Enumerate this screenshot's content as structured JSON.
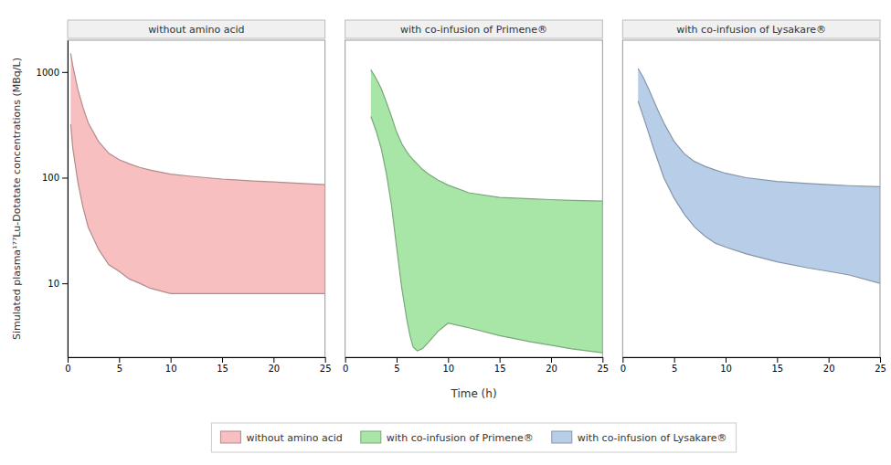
{
  "chart_data": [
    {
      "type": "area",
      "title": "without amino acid",
      "ylabel": "Simulated plasma¹⁷⁷Lu-Dotatate concentrations (MBq/L)",
      "x": [
        0.3,
        0.5,
        1.0,
        1.5,
        2.0,
        3.0,
        4.0,
        5.0,
        6.0,
        7.0,
        8.0,
        10.0,
        12.0,
        15.0,
        18.0,
        20.0,
        22.0,
        25.0
      ],
      "series": [
        {
          "name": "without amino acid",
          "color": "#F7BFBF",
          "values": [
            1500,
            1150,
            680,
            460,
            330,
            220,
            170,
            148,
            135,
            125,
            118,
            108,
            103,
            97,
            93,
            91,
            89,
            86
          ],
          "lower": [
            320,
            190,
            90,
            52,
            34,
            21,
            15,
            13,
            11,
            10,
            9,
            8,
            8,
            8,
            8,
            8,
            8,
            8
          ]
        }
      ],
      "xlim": [
        0,
        25
      ],
      "xticks": [
        0,
        5,
        10,
        15,
        20,
        25
      ],
      "ylim": [
        2.0,
        2000
      ],
      "yticks": [
        10,
        100,
        1000
      ],
      "log": "y",
      "grid": false,
      "legend": "bottom"
    },
    {
      "type": "area",
      "title": "with co-infusion of Primene®",
      "xlabel": "Time (h)",
      "x": [
        2.5,
        3.0,
        3.5,
        4.0,
        4.5,
        5.0,
        5.5,
        6.0,
        6.3,
        6.6,
        7.0,
        7.5,
        8.0,
        9.0,
        10.0,
        12.0,
        15.0,
        18.0,
        20.0,
        22.0,
        25.0
      ],
      "series": [
        {
          "name": "with co-infusion of Primene®",
          "color": "#A8E6A8",
          "values": [
            1050,
            870,
            700,
            520,
            380,
            270,
            210,
            175,
            160,
            148,
            135,
            120,
            110,
            95,
            85,
            72,
            65,
            63,
            62,
            61,
            60
          ],
          "lower": [
            380,
            280,
            190,
            110,
            55,
            22,
            9,
            4.5,
            3.2,
            2.5,
            2.3,
            2.4,
            2.7,
            3.5,
            4.2,
            3.8,
            3.2,
            2.8,
            2.6,
            2.4,
            2.2
          ]
        }
      ],
      "xlim": [
        0,
        25
      ],
      "xticks": [
        0,
        5,
        10,
        15,
        20,
        25
      ],
      "ylim": [
        2.0,
        2000
      ],
      "log": "y",
      "grid": false,
      "legend": "bottom",
      "tick_labels": "x"
    },
    {
      "type": "area",
      "title": "with co-infusion of Lysakare®",
      "x": [
        1.5,
        2.0,
        2.5,
        3.0,
        3.5,
        4.0,
        5.0,
        6.0,
        7.0,
        8.0,
        9.0,
        10.0,
        12.0,
        15.0,
        18.0,
        20.0,
        22.0,
        25.0
      ],
      "series": [
        {
          "name": "with co-infusion of Lysakare®",
          "color": "#B8CEE8",
          "values": [
            1080,
            890,
            700,
            540,
            420,
            330,
            220,
            168,
            142,
            128,
            118,
            110,
            100,
            92,
            88,
            86,
            84,
            82
          ],
          "lower": [
            530,
            380,
            270,
            190,
            138,
            100,
            64,
            45,
            34,
            28,
            24,
            22,
            19,
            16,
            14,
            13,
            12,
            10
          ]
        }
      ],
      "xlim": [
        0,
        25
      ],
      "xticks": [
        0,
        5,
        10,
        15,
        20,
        25
      ],
      "ylim": [
        2.0,
        2000
      ],
      "log": "y",
      "grid": false,
      "legend": "bottom",
      "tick_labels": "x"
    }
  ]
}
